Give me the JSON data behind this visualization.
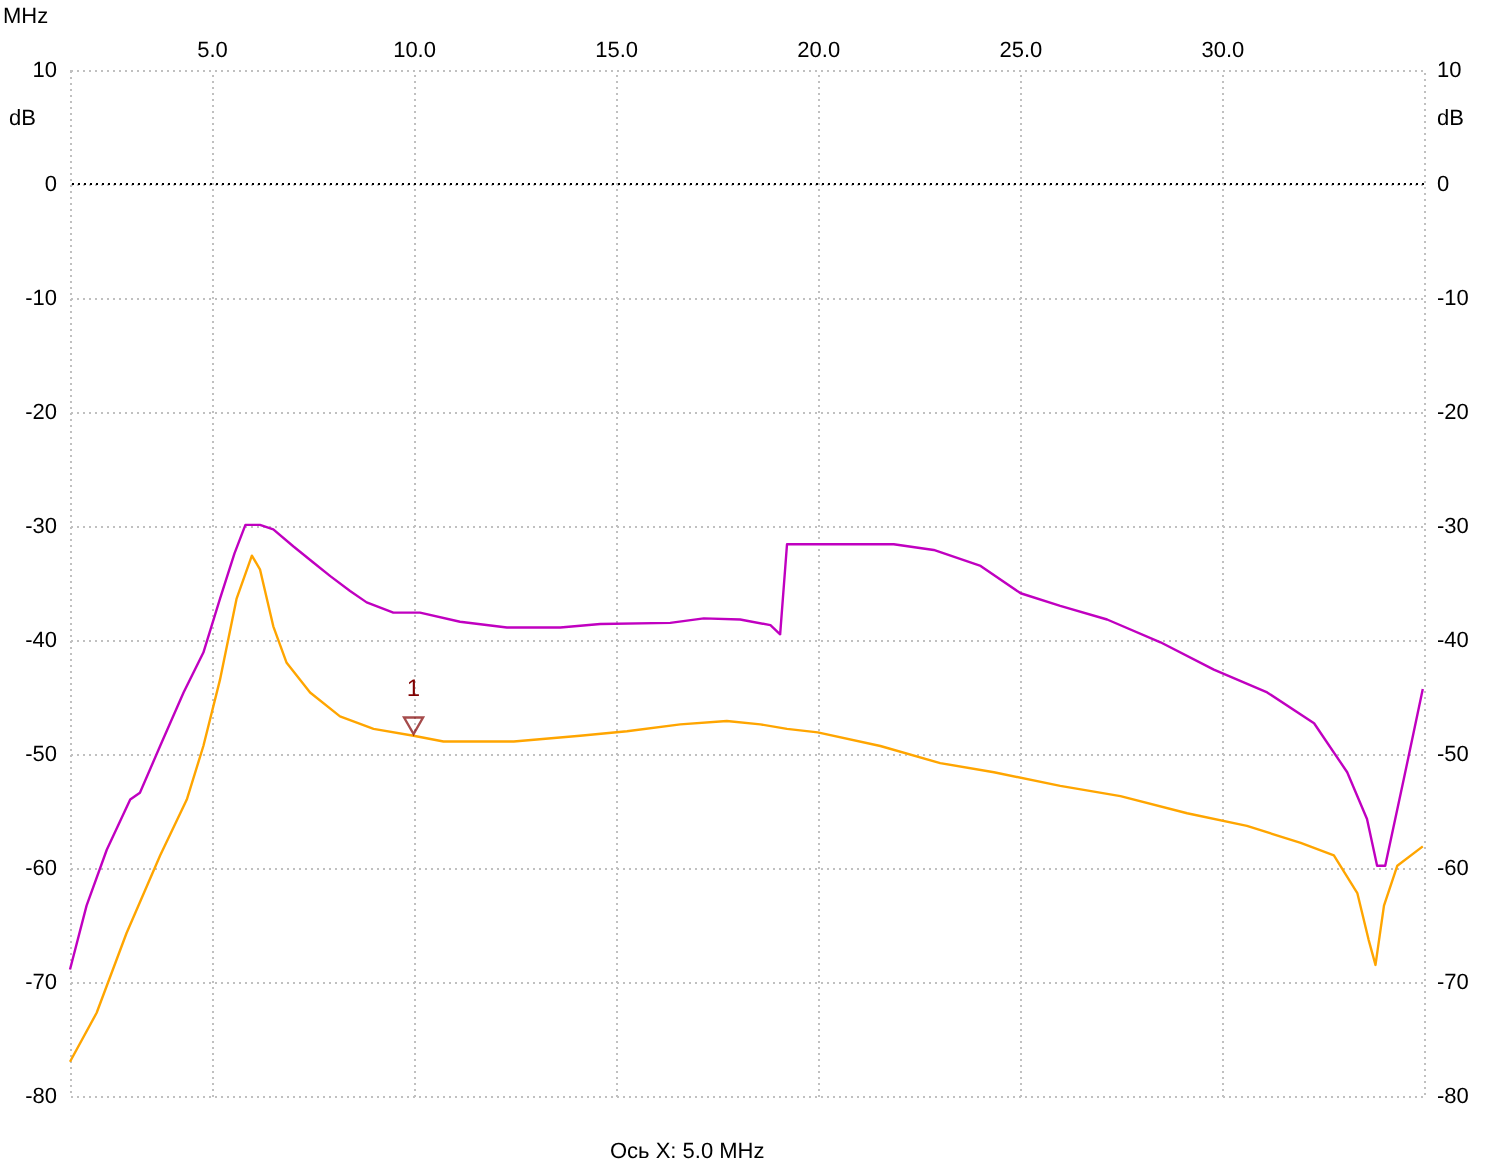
{
  "chart_data": {
    "type": "line",
    "xlabel": "MHz",
    "ylabel": "dB",
    "y2label": "dB",
    "xlim": [
      1.5,
      35
    ],
    "xticks": [
      {
        "value": 5,
        "label": "5.0"
      },
      {
        "value": 10,
        "label": "10.0"
      },
      {
        "value": 15,
        "label": "15.0"
      },
      {
        "value": 20,
        "label": "20.0"
      },
      {
        "value": 25,
        "label": "25.0"
      },
      {
        "value": 30,
        "label": "30.0"
      }
    ],
    "ylim": [
      -80,
      10
    ],
    "yticks": [
      10,
      0,
      -10,
      -20,
      -30,
      -40,
      -50,
      -60,
      -70,
      -80
    ],
    "y2lim": [
      -80,
      10
    ],
    "y2ticks": [
      10,
      0,
      -10,
      -20,
      -30,
      -40,
      -50,
      -60,
      -70,
      -80
    ],
    "grid": true,
    "series": [
      {
        "color": "#c000c0",
        "x": [
          1.5,
          1.91,
          2.41,
          2.99,
          3.23,
          3.73,
          4.31,
          4.8,
          5.21,
          5.57,
          5.84,
          6.2,
          6.53,
          7.03,
          7.52,
          7.94,
          8.43,
          8.84,
          9.5,
          10.16,
          11.15,
          12.31,
          13.63,
          14.62,
          16.35,
          17.18,
          18.08,
          18.83,
          19.07,
          19.24,
          21.88,
          22.87,
          24.03,
          25.02,
          26.0,
          27.16,
          28.48,
          29.8,
          31.12,
          32.28,
          33.1,
          33.59,
          33.84,
          34.04,
          34.5,
          34.97
        ],
        "values": [
          -68.9,
          -63.3,
          -58.4,
          -54.0,
          -53.4,
          -49.3,
          -44.6,
          -41.1,
          -36.4,
          -32.4,
          -29.9,
          -29.9,
          -30.3,
          -31.8,
          -33.2,
          -34.4,
          -35.7,
          -36.7,
          -37.6,
          -37.6,
          -38.4,
          -38.9,
          -38.9,
          -38.6,
          -38.5,
          -38.1,
          -38.2,
          -38.7,
          -39.5,
          -31.6,
          -31.6,
          -32.1,
          -33.5,
          -35.9,
          -37.0,
          -38.2,
          -40.2,
          -42.6,
          -44.6,
          -47.3,
          -51.6,
          -55.7,
          -59.8,
          -59.8,
          -52.2,
          -44.3
        ]
      },
      {
        "color": "#ffa500",
        "x": [
          1.5,
          2.16,
          2.9,
          3.73,
          4.39,
          4.8,
          5.21,
          5.62,
          6.0,
          6.2,
          6.53,
          6.86,
          7.44,
          8.18,
          9.01,
          10.0,
          10.74,
          12.48,
          14.12,
          15.28,
          16.6,
          17.75,
          18.58,
          19.24,
          20.0,
          21.55,
          23.03,
          24.36,
          26.0,
          27.49,
          29.14,
          30.62,
          31.95,
          32.77,
          33.35,
          33.63,
          33.8,
          34.01,
          34.34,
          34.97
        ],
        "values": [
          -77.0,
          -72.7,
          -65.7,
          -58.9,
          -54.0,
          -49.3,
          -43.5,
          -36.4,
          -32.6,
          -33.8,
          -38.8,
          -42.0,
          -44.6,
          -46.7,
          -47.8,
          -48.4,
          -48.9,
          -48.9,
          -48.4,
          -48.0,
          -47.4,
          -47.1,
          -47.4,
          -47.8,
          -48.1,
          -49.3,
          -50.8,
          -51.6,
          -52.8,
          -53.7,
          -55.2,
          -56.3,
          -57.8,
          -58.9,
          -62.2,
          -66.3,
          -68.5,
          -63.3,
          -59.8,
          -58.1
        ]
      }
    ],
    "ref_lines": [
      {
        "axis": "y",
        "value": 0,
        "color": "#000000",
        "line_style": "dotted"
      }
    ],
    "annotations": [
      {
        "text": "1",
        "x": 10,
        "y": -48.4
      },
      "Ось X: 5.0 MHz"
    ]
  }
}
